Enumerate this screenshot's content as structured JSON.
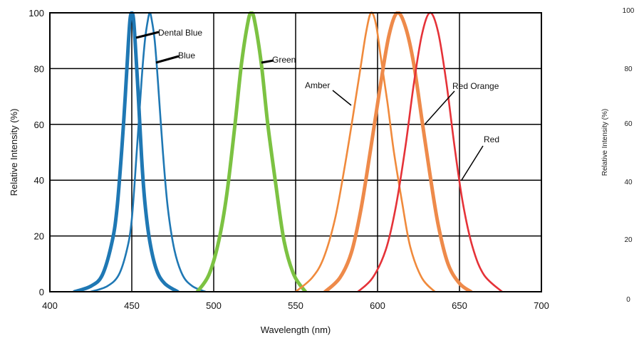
{
  "chart_data": {
    "type": "line",
    "xlabel": "Wavelength (nm)",
    "ylabel": "Relative Intensity (%)",
    "xlim": [
      400,
      700
    ],
    "ylim": [
      0,
      100
    ],
    "x_ticks": [
      "400",
      "450",
      "500",
      "550",
      "600",
      "650",
      "700"
    ],
    "y_ticks": [
      "0",
      "20",
      "40",
      "60",
      "80",
      "100"
    ],
    "grid": true,
    "legend": "annotations",
    "series": [
      {
        "name": "Dental Blue",
        "color": "#1f78b4",
        "weight": "bold",
        "points": [
          [
            415,
            0
          ],
          [
            425,
            2
          ],
          [
            432,
            6
          ],
          [
            438,
            18
          ],
          [
            441,
            30
          ],
          [
            444,
            52
          ],
          [
            446,
            70
          ],
          [
            448,
            90
          ],
          [
            449,
            98
          ],
          [
            450,
            100
          ],
          [
            451,
            98
          ],
          [
            452,
            90
          ],
          [
            454,
            70
          ],
          [
            456,
            48
          ],
          [
            458,
            32
          ],
          [
            461,
            18
          ],
          [
            465,
            8
          ],
          [
            470,
            3
          ],
          [
            478,
            0
          ]
        ]
      },
      {
        "name": "Blue",
        "color": "#1f78b4",
        "weight": "normal",
        "points": [
          [
            425,
            0
          ],
          [
            435,
            2
          ],
          [
            442,
            6
          ],
          [
            447,
            15
          ],
          [
            450,
            26
          ],
          [
            453,
            50
          ],
          [
            456,
            76
          ],
          [
            458,
            90
          ],
          [
            460,
            98
          ],
          [
            461,
            100
          ],
          [
            462,
            98
          ],
          [
            464,
            90
          ],
          [
            466,
            75
          ],
          [
            469,
            50
          ],
          [
            472,
            30
          ],
          [
            476,
            15
          ],
          [
            481,
            6
          ],
          [
            487,
            2
          ],
          [
            495,
            0
          ]
        ]
      },
      {
        "name": "Green",
        "color": "#7cc242",
        "weight": "bold",
        "points": [
          [
            490,
            0
          ],
          [
            497,
            6
          ],
          [
            503,
            18
          ],
          [
            508,
            35
          ],
          [
            513,
            60
          ],
          [
            517,
            82
          ],
          [
            521,
            97
          ],
          [
            523,
            100
          ],
          [
            525,
            97
          ],
          [
            529,
            82
          ],
          [
            533,
            60
          ],
          [
            538,
            38
          ],
          [
            543,
            18
          ],
          [
            549,
            6
          ],
          [
            556,
            0
          ]
        ]
      },
      {
        "name": "Amber",
        "color": "#f08a3c",
        "weight": "normal",
        "points": [
          [
            550,
            0
          ],
          [
            560,
            5
          ],
          [
            567,
            12
          ],
          [
            574,
            26
          ],
          [
            580,
            45
          ],
          [
            585,
            63
          ],
          [
            589,
            78
          ],
          [
            593,
            93
          ],
          [
            596,
            100
          ],
          [
            599,
            96
          ],
          [
            602,
            84
          ],
          [
            606,
            68
          ],
          [
            610,
            50
          ],
          [
            615,
            32
          ],
          [
            620,
            16
          ],
          [
            627,
            5
          ],
          [
            635,
            0
          ]
        ]
      },
      {
        "name": "Red Orange",
        "color": "#ee8a4a",
        "weight": "bold",
        "points": [
          [
            568,
            0
          ],
          [
            577,
            5
          ],
          [
            584,
            14
          ],
          [
            590,
            30
          ],
          [
            596,
            52
          ],
          [
            602,
            75
          ],
          [
            607,
            92
          ],
          [
            612,
            100
          ],
          [
            617,
            95
          ],
          [
            622,
            82
          ],
          [
            627,
            62
          ],
          [
            632,
            42
          ],
          [
            637,
            24
          ],
          [
            643,
            10
          ],
          [
            650,
            3
          ],
          [
            657,
            0
          ]
        ]
      },
      {
        "name": "Red",
        "color": "#e53238",
        "weight": "normal",
        "points": [
          [
            588,
            0
          ],
          [
            597,
            5
          ],
          [
            605,
            15
          ],
          [
            611,
            30
          ],
          [
            617,
            52
          ],
          [
            622,
            74
          ],
          [
            627,
            92
          ],
          [
            632,
            100
          ],
          [
            637,
            93
          ],
          [
            642,
            75
          ],
          [
            647,
            52
          ],
          [
            652,
            32
          ],
          [
            658,
            16
          ],
          [
            665,
            6
          ],
          [
            676,
            0
          ]
        ]
      }
    ],
    "annotations": [
      {
        "text": "Dental Blue"
      },
      {
        "text": "Blue"
      },
      {
        "text": "Green"
      },
      {
        "text": "Amber"
      },
      {
        "text": "Red Orange"
      },
      {
        "text": "Red"
      }
    ],
    "right_axis": {
      "label": "Relative Intensity (%)",
      "ticks": [
        "100",
        "80",
        "60",
        "40",
        "20",
        "0"
      ]
    }
  }
}
